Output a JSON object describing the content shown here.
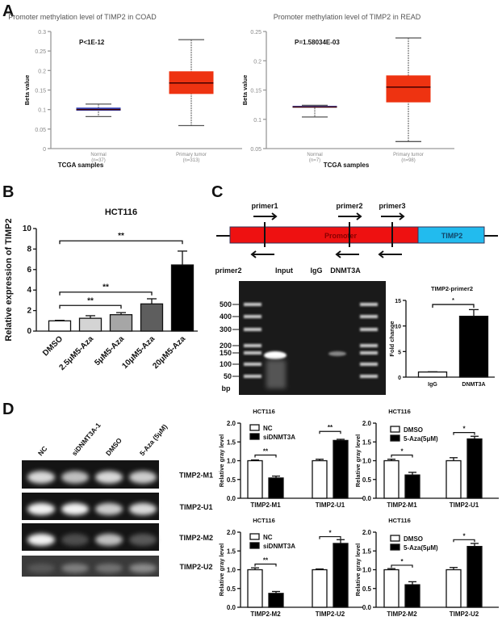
{
  "panels": {
    "a": "A",
    "b": "B",
    "c": "C",
    "d": "D"
  },
  "diagram": {
    "primers": [
      "primer1",
      "primer2",
      "primer3"
    ],
    "promoter_label": "Promoter",
    "gene_label": "TIMP2",
    "colors": {
      "promoter": "#ee1111",
      "gene": "#22bbee"
    }
  },
  "gel_c": {
    "title": "primer2",
    "lanes": [
      "Input",
      "IgG",
      "DNMT3A"
    ],
    "ladder": [
      "500",
      "400",
      "300",
      "200",
      "150",
      "100",
      "50"
    ],
    "unit": "bp"
  },
  "gel_d": {
    "lanes": [
      "NC",
      "siDNMT3A-1",
      "DMSO",
      "5-Aza (5μM)"
    ],
    "rows": [
      "TIMP2-M1",
      "TIMP2-U1",
      "TIMP2-M2",
      "TIMP2-U2"
    ]
  },
  "chart_data": [
    {
      "id": "a1",
      "type": "box",
      "title": "Promoter methylation level of TIMP2 in COAD",
      "xlabel": "TCGA samples",
      "ylabel": "Beta value",
      "annotation": "P<1E-12",
      "ylim": [
        0,
        0.3
      ],
      "yticks": [
        "0",
        "0.05",
        "0.1",
        "0.15",
        "0.2",
        "0.25",
        "0.3"
      ],
      "groups": [
        {
          "name": "Normal",
          "n": "(n=37)",
          "min": 0.082,
          "q1": 0.097,
          "median": 0.1,
          "q3": 0.105,
          "max": 0.114,
          "color": "#3344bb"
        },
        {
          "name": "Primary tumor",
          "n": "(n=313)",
          "min": 0.059,
          "q1": 0.14,
          "median": 0.168,
          "q3": 0.198,
          "max": 0.279,
          "color": "#ee3311"
        }
      ]
    },
    {
      "id": "a2",
      "type": "box",
      "title": "Promoter methylation level of TIMP2 in READ",
      "xlabel": "TCGA samples",
      "ylabel": "Beta value",
      "annotation": "P=1.58034E-03",
      "ylim": [
        0.05,
        0.25
      ],
      "yticks": [
        "0.05",
        "0.1",
        "0.15",
        "0.2",
        "0.25"
      ],
      "groups": [
        {
          "name": "Normal",
          "n": "(n=7)",
          "min": 0.104,
          "q1": 0.12,
          "median": 0.121,
          "q3": 0.123,
          "max": 0.124,
          "color": "#3344bb"
        },
        {
          "name": "Primary tumor",
          "n": "(n=98)",
          "min": 0.062,
          "q1": 0.129,
          "median": 0.155,
          "q3": 0.175,
          "max": 0.239,
          "color": "#ee3311"
        }
      ]
    },
    {
      "id": "b",
      "type": "bar",
      "title": "HCT116",
      "ylabel": "Relative expression of TIMP2",
      "ylim": [
        0,
        10
      ],
      "yticks": [
        "0",
        "2",
        "4",
        "6",
        "8",
        "10"
      ],
      "categories": [
        "DMSO",
        "2.5μM5-Aza",
        "5μM5-Aza",
        "10μM5-Aza",
        "20μM5-Aza"
      ],
      "values": [
        1.0,
        1.25,
        1.6,
        2.65,
        6.45
      ],
      "errors": [
        0.05,
        0.25,
        0.2,
        0.5,
        1.35
      ],
      "colors": [
        "#ffffff",
        "#d4d4d4",
        "#a6a6a6",
        "#5e5e5e",
        "#000000"
      ],
      "significance": [
        {
          "from": 0,
          "to": 2,
          "label": "**",
          "y": 2.5
        },
        {
          "from": 0,
          "to": 3,
          "label": "**",
          "y": 3.8
        },
        {
          "from": 0,
          "to": 4,
          "label": "**",
          "y": 8.8
        }
      ]
    },
    {
      "id": "c",
      "type": "bar",
      "title": "TIMP2-primer2",
      "ylabel": "Fold change",
      "ylim": [
        0,
        15
      ],
      "yticks": [
        "0",
        "5",
        "10",
        "15"
      ],
      "categories": [
        "IgG",
        "DNMT3A"
      ],
      "values": [
        1.0,
        11.9
      ],
      "errors": [
        0.05,
        1.3
      ],
      "colors": [
        "#ffffff",
        "#000000"
      ],
      "significance": [
        {
          "from": 0,
          "to": 1,
          "label": "*",
          "y": 14.2
        }
      ]
    },
    {
      "id": "d1",
      "type": "bar",
      "title": "HCT116",
      "ylabel": "Relative gray level",
      "ylim": [
        0,
        2
      ],
      "yticks": [
        "0.0",
        "0.5",
        "1.0",
        "1.5",
        "2.0"
      ],
      "categories": [
        "TIMP2-M1",
        "TIMP2-U1"
      ],
      "series": [
        {
          "name": "NC",
          "values": [
            1.0,
            1.0
          ],
          "errors": [
            0.02,
            0.04
          ],
          "color": "#ffffff"
        },
        {
          "name": "siDNMT3A",
          "values": [
            0.54,
            1.54
          ],
          "errors": [
            0.05,
            0.03
          ],
          "color": "#000000"
        }
      ],
      "significance": [
        {
          "group": 0,
          "label": "**",
          "y": 1.15
        },
        {
          "group": 1,
          "label": "**",
          "y": 1.78
        }
      ]
    },
    {
      "id": "d2",
      "type": "bar",
      "title": "HCT116",
      "ylabel": "Relative gray level",
      "ylim": [
        0,
        2
      ],
      "yticks": [
        "0.0",
        "0.5",
        "1.0",
        "1.5",
        "2.0"
      ],
      "categories": [
        "TIMP2-M1",
        "TIMP2-U1"
      ],
      "series": [
        {
          "name": "DMSO",
          "values": [
            1.0,
            1.0
          ],
          "errors": [
            0.04,
            0.08
          ],
          "color": "#ffffff"
        },
        {
          "name": "5-Aza(5μM)",
          "values": [
            0.62,
            1.58
          ],
          "errors": [
            0.07,
            0.07
          ],
          "color": "#000000"
        }
      ],
      "significance": [
        {
          "group": 0,
          "label": "*",
          "y": 1.15
        },
        {
          "group": 1,
          "label": "*",
          "y": 1.75
        }
      ]
    },
    {
      "id": "d3",
      "type": "bar",
      "title": "HCT116",
      "ylabel": "Relative gray level",
      "ylim": [
        0,
        2
      ],
      "yticks": [
        "0.0",
        "0.5",
        "1.0",
        "1.5",
        "2.0"
      ],
      "categories": [
        "TIMP2-M2",
        "TIMP2-U2"
      ],
      "series": [
        {
          "name": "NC",
          "values": [
            1.0,
            1.0
          ],
          "errors": [
            0.05,
            0.02
          ],
          "color": "#ffffff"
        },
        {
          "name": "siDNMT3A",
          "values": [
            0.37,
            1.7
          ],
          "errors": [
            0.05,
            0.1
          ],
          "color": "#000000"
        }
      ],
      "significance": [
        {
          "group": 0,
          "label": "**",
          "y": 1.15
        },
        {
          "group": 1,
          "label": "*",
          "y": 1.88
        }
      ]
    },
    {
      "id": "d4",
      "type": "bar",
      "title": "HCT116",
      "ylabel": "Relative gray level",
      "ylim": [
        0,
        2
      ],
      "yticks": [
        "0.0",
        "0.5",
        "1.0",
        "1.5",
        "2.0"
      ],
      "categories": [
        "TIMP2-M2",
        "TIMP2-U2"
      ],
      "series": [
        {
          "name": "DMSO",
          "values": [
            1.0,
            1.0
          ],
          "errors": [
            0.03,
            0.06
          ],
          "color": "#ffffff"
        },
        {
          "name": "5-Aza(5μM)",
          "values": [
            0.6,
            1.62
          ],
          "errors": [
            0.08,
            0.08
          ],
          "color": "#000000"
        }
      ],
      "significance": [
        {
          "group": 0,
          "label": "*",
          "y": 1.12
        },
        {
          "group": 1,
          "label": "*",
          "y": 1.8
        }
      ]
    }
  ]
}
